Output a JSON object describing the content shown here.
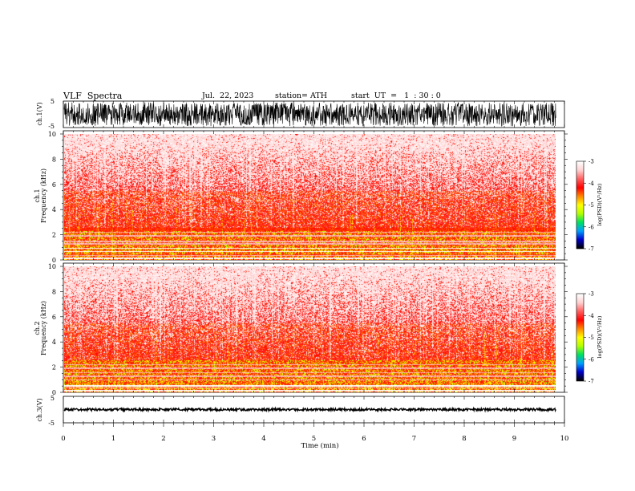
{
  "header": {
    "title": "VLF  Spectra",
    "date": "Jul.  22, 2023",
    "station": "station= ATH",
    "start_ut": "start  UT  =   1  : 30 : 0"
  },
  "chart_data": [
    {
      "type": "line",
      "panel": "ch1",
      "ylabel": "ch.1(V)",
      "ylim": [
        -5,
        5
      ],
      "yticks": [
        "5",
        "-5"
      ],
      "xlim": [
        0,
        10
      ],
      "amplitude_range": [
        -4.5,
        4.5
      ],
      "line_color": "#000000"
    },
    {
      "type": "heatmap",
      "panel": "ch1-spectrogram",
      "ylabel": "ch.1\nFrequency  (kHz)",
      "ylim": [
        0,
        10
      ],
      "yticks": [
        "0",
        "2",
        "4",
        "6",
        "8",
        "10"
      ],
      "xlim": [
        0,
        9.83
      ],
      "colorbar": {
        "label": "log(PSD)(V²/Hz)",
        "range": [
          -7,
          -3
        ],
        "ticks": [
          "-3",
          "-4",
          "-5",
          "-6",
          "-7"
        ]
      },
      "bands": {
        "white_gaps_khz": [
          0.15,
          0.7,
          0.95
        ],
        "hum_lines_khz": [
          0.4,
          1.3,
          1.5,
          1.95,
          2.25
        ],
        "green_zone_khz": [
          0.5,
          2.3
        ]
      }
    },
    {
      "type": "heatmap",
      "panel": "ch2-spectrogram",
      "ylabel": "ch.2\nFrequency  (kHz)",
      "ylim": [
        0,
        10
      ],
      "yticks": [
        "0",
        "2",
        "4",
        "6",
        "8",
        "10"
      ],
      "xlim": [
        0,
        9.83
      ],
      "colorbar": {
        "label": "log(PSD)(V²/Hz)",
        "range": [
          -7,
          -3
        ],
        "ticks": [
          "-3",
          "-4",
          "-5",
          "-6",
          "-7"
        ]
      },
      "bands": {
        "white_gaps_khz": [
          0.15,
          0.55
        ],
        "hum_lines_khz": [
          0.4,
          1.0,
          1.3,
          1.6,
          1.95,
          2.25
        ],
        "green_zone_khz": [
          0.3,
          2.6
        ]
      }
    },
    {
      "type": "line",
      "panel": "ch3",
      "ylabel": "ch.3(V)",
      "ylim": [
        -5,
        5
      ],
      "yticks": [
        "5",
        "-5"
      ],
      "xlim": [
        0,
        10
      ],
      "baseline": 0,
      "line_color": "#000000"
    }
  ],
  "x_axis": {
    "label": "Time  (min)",
    "ticks": [
      "0",
      "1",
      "2",
      "3",
      "4",
      "5",
      "6",
      "7",
      "8",
      "9",
      "10"
    ],
    "range": [
      0,
      10
    ]
  },
  "colormap": [
    "#000000",
    "#0000c8",
    "#00a0ff",
    "#00e060",
    "#b4ff00",
    "#ffff00",
    "#ff8800",
    "#ff0000",
    "#ff6060",
    "#ffd0d0",
    "#ffffff"
  ]
}
